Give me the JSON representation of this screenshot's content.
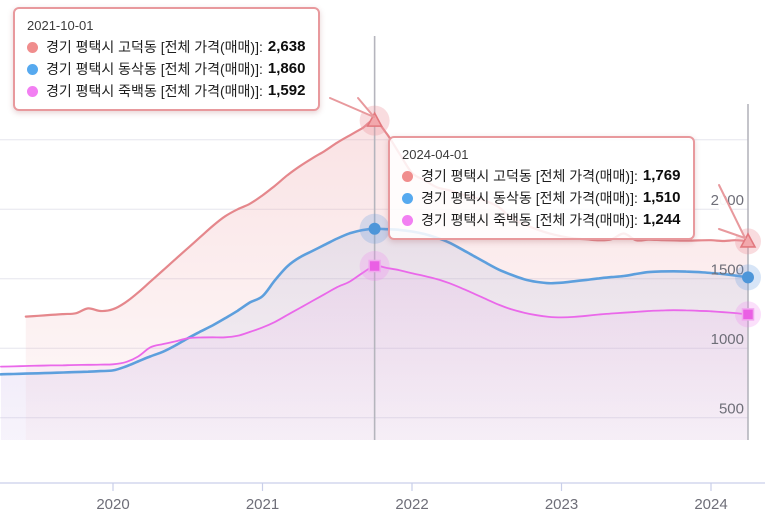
{
  "chart_data": {
    "type": "line",
    "title": "",
    "xlabel": "",
    "ylabel": "",
    "x_axis": {
      "tick_labels": [
        "2020",
        "2021",
        "2022",
        "2023",
        "2024"
      ],
      "tick_years": [
        2020,
        2021,
        2022,
        2023,
        2024
      ]
    },
    "y_axis": {
      "label_ticks": [
        2000,
        1500,
        1000,
        500
      ],
      "grid_ticks": [
        2500,
        2000,
        1500,
        1000,
        500
      ],
      "range": [
        0,
        2750
      ]
    },
    "grid": true,
    "legend_position": "none",
    "series": [
      {
        "name": "경기 평택시 고덕동 [전체 가격(매매)]",
        "marker": "triangle",
        "color": "#e5878c",
        "dot_color": "#f08d8d",
        "marker_fill": "#f2a8ac",
        "marker_stroke": "#e2787e",
        "halo_color": "rgba(238,150,158,0.33)",
        "fill_top": "rgba(236,158,164,0.30)",
        "fill_bottom": "rgba(236,158,164,0.06)",
        "points": [
          [
            "2019-06",
            1228
          ],
          [
            "2019-07",
            1234
          ],
          [
            "2019-08",
            1240
          ],
          [
            "2019-09",
            1246
          ],
          [
            "2019-10",
            1252
          ],
          [
            "2019-11",
            1287
          ],
          [
            "2019-12",
            1268
          ],
          [
            "2020-01",
            1281
          ],
          [
            "2020-02",
            1330
          ],
          [
            "2020-03",
            1400
          ],
          [
            "2020-04",
            1480
          ],
          [
            "2020-05",
            1560
          ],
          [
            "2020-06",
            1640
          ],
          [
            "2020-07",
            1720
          ],
          [
            "2020-08",
            1800
          ],
          [
            "2020-09",
            1880
          ],
          [
            "2020-10",
            1950
          ],
          [
            "2020-11",
            2000
          ],
          [
            "2020-12",
            2040
          ],
          [
            "2021-01",
            2100
          ],
          [
            "2021-02",
            2170
          ],
          [
            "2021-03",
            2245
          ],
          [
            "2021-04",
            2310
          ],
          [
            "2021-05",
            2367
          ],
          [
            "2021-06",
            2420
          ],
          [
            "2021-07",
            2480
          ],
          [
            "2021-08",
            2532
          ],
          [
            "2021-09",
            2583
          ],
          [
            "2021-10",
            2638
          ],
          [
            "2021-11",
            2540
          ],
          [
            "2021-12",
            2400
          ],
          [
            "2022-01",
            2262
          ],
          [
            "2022-02",
            2209
          ],
          [
            "2022-03",
            2158
          ],
          [
            "2022-04",
            2137
          ],
          [
            "2022-05",
            2108
          ],
          [
            "2022-06",
            2086
          ],
          [
            "2022-07",
            2057
          ],
          [
            "2022-08",
            2014
          ],
          [
            "2022-09",
            1935
          ],
          [
            "2022-10",
            1892
          ],
          [
            "2022-11",
            1856
          ],
          [
            "2022-12",
            1827
          ],
          [
            "2023-01",
            1806
          ],
          [
            "2023-02",
            1791
          ],
          [
            "2023-03",
            1784
          ],
          [
            "2023-04",
            1777
          ],
          [
            "2023-05",
            1784
          ],
          [
            "2023-06",
            1826
          ],
          [
            "2023-07",
            1777
          ],
          [
            "2023-08",
            1782
          ],
          [
            "2023-09",
            1778
          ],
          [
            "2023-10",
            1776
          ],
          [
            "2023-11",
            1774
          ],
          [
            "2023-12",
            1776
          ],
          [
            "2024-01",
            1778
          ],
          [
            "2024-02",
            1772
          ],
          [
            "2024-03",
            1778
          ],
          [
            "2024-04",
            1769
          ]
        ]
      },
      {
        "name": "경기 평택시 동삭동 [전체 가격(매매)]",
        "marker": "circle",
        "color": "#5d9fdd",
        "dot_color": "#56a9ef",
        "marker_fill": "#4d96d9",
        "marker_stroke": "#4d96d9",
        "halo_color": "rgba(110,160,225,0.28)",
        "fill_top": "rgba(120,150,210,0.20)",
        "fill_bottom": "rgba(120,150,210,0.05)",
        "points": [
          [
            "2019-04",
            813
          ],
          [
            "2019-05",
            815
          ],
          [
            "2019-06",
            818
          ],
          [
            "2019-07",
            820
          ],
          [
            "2019-08",
            823
          ],
          [
            "2019-09",
            826
          ],
          [
            "2019-10",
            829
          ],
          [
            "2019-11",
            832
          ],
          [
            "2019-12",
            836
          ],
          [
            "2020-01",
            841
          ],
          [
            "2020-02",
            868
          ],
          [
            "2020-03",
            905
          ],
          [
            "2020-04",
            942
          ],
          [
            "2020-05",
            975
          ],
          [
            "2020-06",
            1020
          ],
          [
            "2020-07",
            1072
          ],
          [
            "2020-08",
            1120
          ],
          [
            "2020-09",
            1165
          ],
          [
            "2020-10",
            1216
          ],
          [
            "2020-11",
            1270
          ],
          [
            "2020-12",
            1330
          ],
          [
            "2021-01",
            1375
          ],
          [
            "2021-02",
            1490
          ],
          [
            "2021-03",
            1590
          ],
          [
            "2021-04",
            1655
          ],
          [
            "2021-05",
            1700
          ],
          [
            "2021-06",
            1745
          ],
          [
            "2021-07",
            1790
          ],
          [
            "2021-08",
            1827
          ],
          [
            "2021-09",
            1850
          ],
          [
            "2021-10",
            1860
          ],
          [
            "2021-11",
            1857
          ],
          [
            "2021-12",
            1852
          ],
          [
            "2022-01",
            1840
          ],
          [
            "2022-02",
            1822
          ],
          [
            "2022-03",
            1795
          ],
          [
            "2022-04",
            1760
          ],
          [
            "2022-05",
            1712
          ],
          [
            "2022-06",
            1662
          ],
          [
            "2022-07",
            1612
          ],
          [
            "2022-08",
            1565
          ],
          [
            "2022-09",
            1528
          ],
          [
            "2022-10",
            1497
          ],
          [
            "2022-11",
            1478
          ],
          [
            "2022-12",
            1468
          ],
          [
            "2023-01",
            1472
          ],
          [
            "2023-02",
            1482
          ],
          [
            "2023-03",
            1492
          ],
          [
            "2023-04",
            1503
          ],
          [
            "2023-05",
            1512
          ],
          [
            "2023-06",
            1520
          ],
          [
            "2023-07",
            1535
          ],
          [
            "2023-08",
            1548
          ],
          [
            "2023-09",
            1553
          ],
          [
            "2023-10",
            1554
          ],
          [
            "2023-11",
            1552
          ],
          [
            "2023-12",
            1548
          ],
          [
            "2024-01",
            1542
          ],
          [
            "2024-02",
            1534
          ],
          [
            "2024-03",
            1523
          ],
          [
            "2024-04",
            1510
          ]
        ]
      },
      {
        "name": "경기 평택시 죽백동 [전체 가격(매매)]",
        "marker": "square",
        "color": "#ea68ea",
        "dot_color": "#f27ff2",
        "marker_fill": "#ea5fe4",
        "marker_stroke": "#f0a8ee",
        "halo_color": "rgba(240,130,240,0.25)",
        "fill_top": "rgba(225,145,232,0.22)",
        "fill_bottom": "rgba(225,145,232,0.06)",
        "points": [
          [
            "2019-04",
            868
          ],
          [
            "2019-05",
            870
          ],
          [
            "2019-06",
            873
          ],
          [
            "2019-07",
            875
          ],
          [
            "2019-08",
            877
          ],
          [
            "2019-09",
            878
          ],
          [
            "2019-10",
            880
          ],
          [
            "2019-11",
            881
          ],
          [
            "2019-12",
            883
          ],
          [
            "2020-01",
            885
          ],
          [
            "2020-02",
            900
          ],
          [
            "2020-03",
            940
          ],
          [
            "2020-04",
            1007
          ],
          [
            "2020-05",
            1030
          ],
          [
            "2020-06",
            1050
          ],
          [
            "2020-07",
            1072
          ],
          [
            "2020-08",
            1078
          ],
          [
            "2020-09",
            1079
          ],
          [
            "2020-10",
            1079
          ],
          [
            "2020-11",
            1090
          ],
          [
            "2020-12",
            1118
          ],
          [
            "2021-01",
            1150
          ],
          [
            "2021-02",
            1190
          ],
          [
            "2021-03",
            1240
          ],
          [
            "2021-04",
            1290
          ],
          [
            "2021-05",
            1340
          ],
          [
            "2021-06",
            1390
          ],
          [
            "2021-07",
            1440
          ],
          [
            "2021-08",
            1480
          ],
          [
            "2021-09",
            1540
          ],
          [
            "2021-10",
            1592
          ],
          [
            "2021-11",
            1578
          ],
          [
            "2021-12",
            1562
          ],
          [
            "2022-01",
            1540
          ],
          [
            "2022-02",
            1520
          ],
          [
            "2022-03",
            1498
          ],
          [
            "2022-04",
            1468
          ],
          [
            "2022-05",
            1432
          ],
          [
            "2022-06",
            1392
          ],
          [
            "2022-07",
            1352
          ],
          [
            "2022-08",
            1312
          ],
          [
            "2022-09",
            1280
          ],
          [
            "2022-10",
            1256
          ],
          [
            "2022-11",
            1238
          ],
          [
            "2022-12",
            1226
          ],
          [
            "2023-01",
            1222
          ],
          [
            "2023-02",
            1226
          ],
          [
            "2023-03",
            1234
          ],
          [
            "2023-04",
            1243
          ],
          [
            "2023-05",
            1250
          ],
          [
            "2023-06",
            1256
          ],
          [
            "2023-07",
            1262
          ],
          [
            "2023-08",
            1268
          ],
          [
            "2023-09",
            1272
          ],
          [
            "2023-10",
            1274
          ],
          [
            "2023-11",
            1273
          ],
          [
            "2023-12",
            1270
          ],
          [
            "2024-01",
            1266
          ],
          [
            "2024-02",
            1260
          ],
          [
            "2024-03",
            1253
          ],
          [
            "2024-04",
            1244
          ]
        ]
      }
    ],
    "tooltips": [
      {
        "date": "2021-10-01",
        "month": "2021-10",
        "rows": [
          {
            "label": "경기 평택시 고덕동 [전체 가격(매매)]:",
            "value": 2638,
            "value_display": "2,638"
          },
          {
            "label": "경기 평택시 동삭동 [전체 가격(매매)]:",
            "value": 1860,
            "value_display": "1,860"
          },
          {
            "label": "경기 평택시 죽백동 [전체 가격(매매)]:",
            "value": 1592,
            "value_display": "1,592"
          }
        ]
      },
      {
        "date": "2024-04-01",
        "month": "2024-04",
        "rows": [
          {
            "label": "경기 평택시 고덕동 [전체 가격(매매)]:",
            "value": 1769,
            "value_display": "1,769"
          },
          {
            "label": "경기 평택시 동삭동 [전체 가격(매매)]:",
            "value": 1510,
            "value_display": "1,510"
          },
          {
            "label": "경기 평택시 죽백동 [전체 가격(매매)]:",
            "value": 1244,
            "value_display": "1,244"
          }
        ]
      }
    ],
    "colors": {
      "gridline": "#e6e6ee",
      "axis_line": "#c9cfe9",
      "axis_label": "#6e6e78",
      "guide_line": "#b5b5bd",
      "tooltip_border": "#e8999d"
    }
  }
}
